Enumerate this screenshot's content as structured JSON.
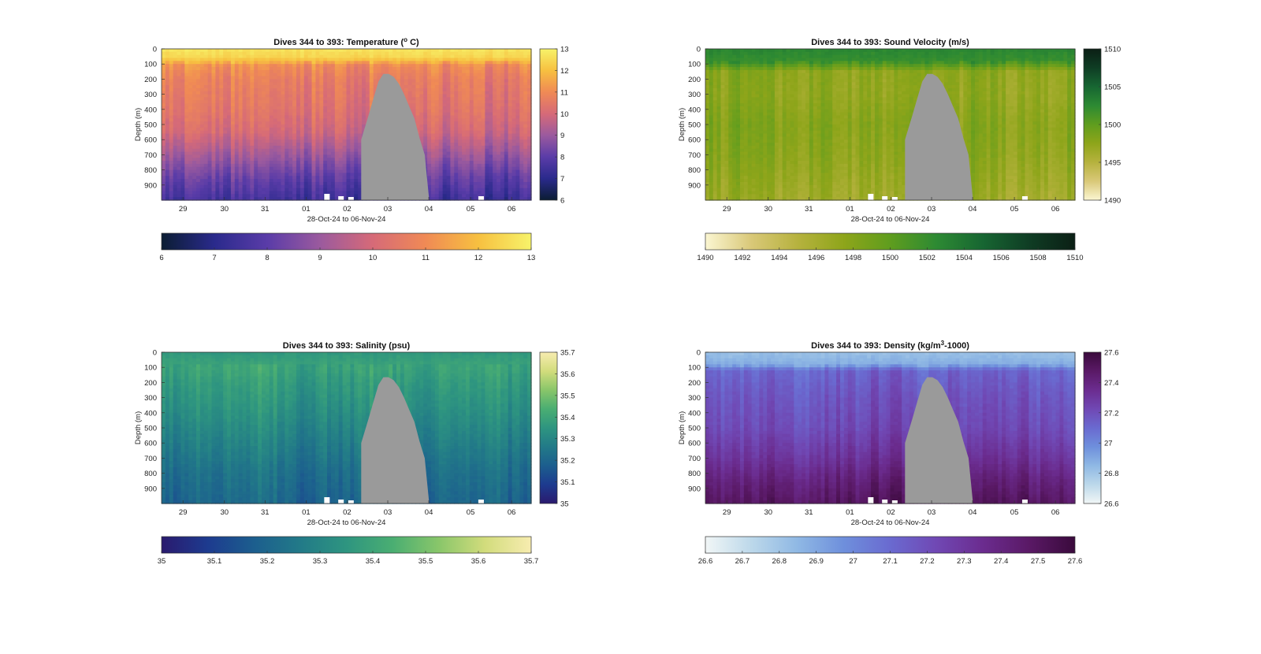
{
  "chart_data": [
    {
      "type": "heatmap",
      "title_main": "Dives 344 to 393: Temperature (",
      "title_sup": "o",
      "title_end": " C)",
      "xlabel": "28-Oct-24 to 06-Nov-24",
      "ylabel": "Depth (m)",
      "x_tick_labels": [
        "29",
        "30",
        "31",
        "01",
        "02",
        "03",
        "04",
        "05",
        "06"
      ],
      "y_tick_labels": [
        "0",
        "100",
        "200",
        "300",
        "400",
        "500",
        "600",
        "700",
        "800",
        "900"
      ],
      "ylim": [
        0,
        1000
      ],
      "colorbar_ticks": [
        "13",
        "12",
        "11",
        "10",
        "9",
        "8",
        "7",
        "6"
      ],
      "h_colorbar_ticks": [
        "6",
        "7",
        "8",
        "9",
        "10",
        "11",
        "12",
        "13"
      ],
      "clim": [
        6,
        13
      ],
      "colormap": [
        "#0b1d33",
        "#2a2a8c",
        "#5a3ca8",
        "#9b5a9e",
        "#d66a78",
        "#f08a55",
        "#f7c040",
        "#f7f36a"
      ],
      "profile_by_depth": [
        {
          "depth": 0,
          "value": 12.7
        },
        {
          "depth": 60,
          "value": 12.4
        },
        {
          "depth": 110,
          "value": 11.0
        },
        {
          "depth": 200,
          "value": 10.6
        },
        {
          "depth": 400,
          "value": 10.3
        },
        {
          "depth": 550,
          "value": 9.9
        },
        {
          "depth": 700,
          "value": 9.0
        },
        {
          "depth": 850,
          "value": 8.1
        },
        {
          "depth": 1000,
          "value": 7.4
        }
      ],
      "no_data_color": "#9a9a9a"
    },
    {
      "type": "heatmap",
      "title_main": "Dives 344 to 393: Sound Velocity (m/s)",
      "title_sup": "",
      "title_end": "",
      "xlabel": "28-Oct-24 to 06-Nov-24",
      "ylabel": "Depth (m)",
      "x_tick_labels": [
        "29",
        "30",
        "31",
        "01",
        "02",
        "03",
        "04",
        "05",
        "06"
      ],
      "y_tick_labels": [
        "0",
        "100",
        "200",
        "300",
        "400",
        "500",
        "600",
        "700",
        "800",
        "900"
      ],
      "ylim": [
        0,
        1000
      ],
      "colorbar_ticks": [
        "1510",
        "1505",
        "1500",
        "1495",
        "1490"
      ],
      "h_colorbar_ticks": [
        "1490",
        "1492",
        "1494",
        "1496",
        "1498",
        "1500",
        "1502",
        "1504",
        "1506",
        "1508",
        "1510"
      ],
      "clim": [
        1490,
        1510
      ],
      "colormap": [
        "#fbf6d2",
        "#d9c878",
        "#b6b23e",
        "#8ea51a",
        "#5f9d1e",
        "#2d8a33",
        "#176632",
        "#0f3d24",
        "#0b1f15"
      ],
      "profile_by_depth": [
        {
          "depth": 0,
          "value": 1502.8
        },
        {
          "depth": 80,
          "value": 1502.0
        },
        {
          "depth": 150,
          "value": 1497.5
        },
        {
          "depth": 300,
          "value": 1497.3
        },
        {
          "depth": 500,
          "value": 1498.0
        },
        {
          "depth": 700,
          "value": 1497.6
        },
        {
          "depth": 900,
          "value": 1496.8
        },
        {
          "depth": 1000,
          "value": 1496.4
        }
      ],
      "no_data_color": "#9a9a9a"
    },
    {
      "type": "heatmap",
      "title_main": "Dives 344 to 393: Salinity (psu)",
      "title_sup": "",
      "title_end": "",
      "xlabel": "28-Oct-24 to 06-Nov-24",
      "ylabel": "Depth (m)",
      "x_tick_labels": [
        "29",
        "30",
        "31",
        "01",
        "02",
        "03",
        "04",
        "05",
        "06"
      ],
      "y_tick_labels": [
        "0",
        "100",
        "200",
        "300",
        "400",
        "500",
        "600",
        "700",
        "800",
        "900"
      ],
      "ylim": [
        0,
        1000
      ],
      "colorbar_ticks": [
        "35.7",
        "35.6",
        "35.5",
        "35.4",
        "35.3",
        "35.2",
        "35.1",
        "35"
      ],
      "h_colorbar_ticks": [
        "35",
        "35.1",
        "35.2",
        "35.3",
        "35.4",
        "35.5",
        "35.6",
        "35.7"
      ],
      "clim": [
        35,
        35.7
      ],
      "colormap": [
        "#2a1a6e",
        "#1d3b8f",
        "#1c5e8e",
        "#227a88",
        "#2e9580",
        "#4aae72",
        "#89c66a",
        "#d2dc7c",
        "#f7ecb0"
      ],
      "profile_by_depth": [
        {
          "depth": 0,
          "value": 35.36
        },
        {
          "depth": 100,
          "value": 35.4
        },
        {
          "depth": 200,
          "value": 35.37
        },
        {
          "depth": 400,
          "value": 35.33
        },
        {
          "depth": 600,
          "value": 35.28
        },
        {
          "depth": 800,
          "value": 35.23
        },
        {
          "depth": 1000,
          "value": 35.2
        }
      ],
      "no_data_color": "#9a9a9a"
    },
    {
      "type": "heatmap",
      "title_main": "Dives 344 to 393: Density (kg/m",
      "title_sup": "3",
      "title_end": "-1000)",
      "xlabel": "28-Oct-24 to 06-Nov-24",
      "ylabel": "Depth (m)",
      "x_tick_labels": [
        "29",
        "30",
        "31",
        "01",
        "02",
        "03",
        "04",
        "05",
        "06"
      ],
      "y_tick_labels": [
        "0",
        "100",
        "200",
        "300",
        "400",
        "500",
        "600",
        "700",
        "800",
        "900"
      ],
      "ylim": [
        0,
        1000
      ],
      "colorbar_ticks": [
        "27.6",
        "27.4",
        "27.2",
        "27",
        "26.8",
        "26.6"
      ],
      "h_colorbar_ticks": [
        "26.6",
        "26.7",
        "26.8",
        "26.9",
        "27",
        "27.1",
        "27.2",
        "27.3",
        "27.4",
        "27.5",
        "27.6"
      ],
      "clim": [
        26.6,
        27.6
      ],
      "colormap": [
        "#f1f6f6",
        "#bcd8ea",
        "#8fb8e4",
        "#6e8fdc",
        "#6a6ad0",
        "#7048b4",
        "#6b2c8f",
        "#5a1966",
        "#3a0a3c"
      ],
      "profile_by_depth": [
        {
          "depth": 0,
          "value": 26.82
        },
        {
          "depth": 80,
          "value": 26.88
        },
        {
          "depth": 120,
          "value": 27.12
        },
        {
          "depth": 300,
          "value": 27.18
        },
        {
          "depth": 500,
          "value": 27.22
        },
        {
          "depth": 700,
          "value": 27.32
        },
        {
          "depth": 850,
          "value": 27.42
        },
        {
          "depth": 1000,
          "value": 27.5
        }
      ],
      "no_data_color": "#9a9a9a"
    }
  ]
}
